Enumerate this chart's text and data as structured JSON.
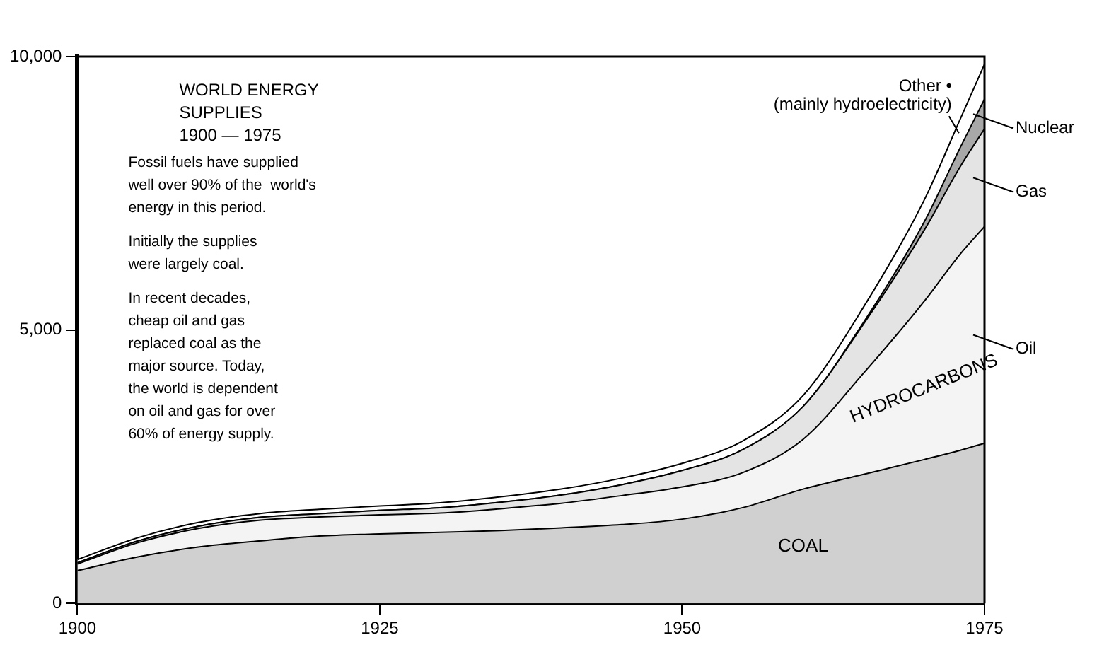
{
  "chart_data": {
    "type": "area",
    "title": "WORLD ENERGY\nSUPPLIES\n1900 — 1975",
    "x": [
      1900,
      1905,
      1910,
      1915,
      1920,
      1925,
      1930,
      1935,
      1940,
      1945,
      1950,
      1955,
      1960,
      1965,
      1970,
      1973,
      1975
    ],
    "stacked": true,
    "series": [
      {
        "name": "COAL",
        "color": "#d0d0d0",
        "values": [
          600,
          850,
          1030,
          1140,
          1230,
          1270,
          1300,
          1330,
          1380,
          1440,
          1540,
          1750,
          2090,
          2360,
          2630,
          2800,
          2930
        ]
      },
      {
        "name": "Oil",
        "color": "#f4f4f4",
        "values": [
          120,
          260,
          340,
          380,
          350,
          350,
          350,
          400,
          450,
          530,
          590,
          640,
          910,
          1850,
          2890,
          3590,
          3960
        ]
      },
      {
        "name": "Gas",
        "color": "#e4e4e4",
        "values": [
          20,
          30,
          40,
          50,
          60,
          80,
          100,
          120,
          150,
          200,
          300,
          420,
          600,
          900,
          1300,
          1600,
          1790
        ]
      },
      {
        "name": "Nuclear",
        "color": "#a8a8a8",
        "values": [
          0,
          0,
          0,
          0,
          0,
          0,
          0,
          0,
          0,
          0,
          0,
          0,
          0,
          30,
          150,
          350,
          540
        ]
      },
      {
        "name": "Other •\n(mainly hydroelectricity)",
        "color": "#ffffff",
        "values": [
          60,
          60,
          70,
          70,
          80,
          80,
          90,
          100,
          110,
          120,
          130,
          160,
          200,
          280,
          400,
          520,
          640
        ]
      }
    ],
    "xlim": [
      1900,
      1975
    ],
    "xticks": [
      1900,
      1925,
      1950,
      1975
    ],
    "ylim": [
      0,
      10000
    ],
    "yticks": [
      {
        "value": 0,
        "label": "0"
      },
      {
        "value": 5000,
        "label": "5,000"
      },
      {
        "value": 10000,
        "label": "10,000"
      }
    ],
    "grid": false,
    "legend": "right",
    "annotations": [
      "Fossil fuels have supplied\nwell over 90% of the  world's\nenergy in this period.",
      "Initially the supplies\nwere largely coal.",
      "In recent decades,\ncheap oil and gas\nreplaced coal as the\nmajor source. Today,\nthe world is dependent\non oil and gas for over\n60% of energy supply.",
      "HYDROCARBONS"
    ]
  }
}
